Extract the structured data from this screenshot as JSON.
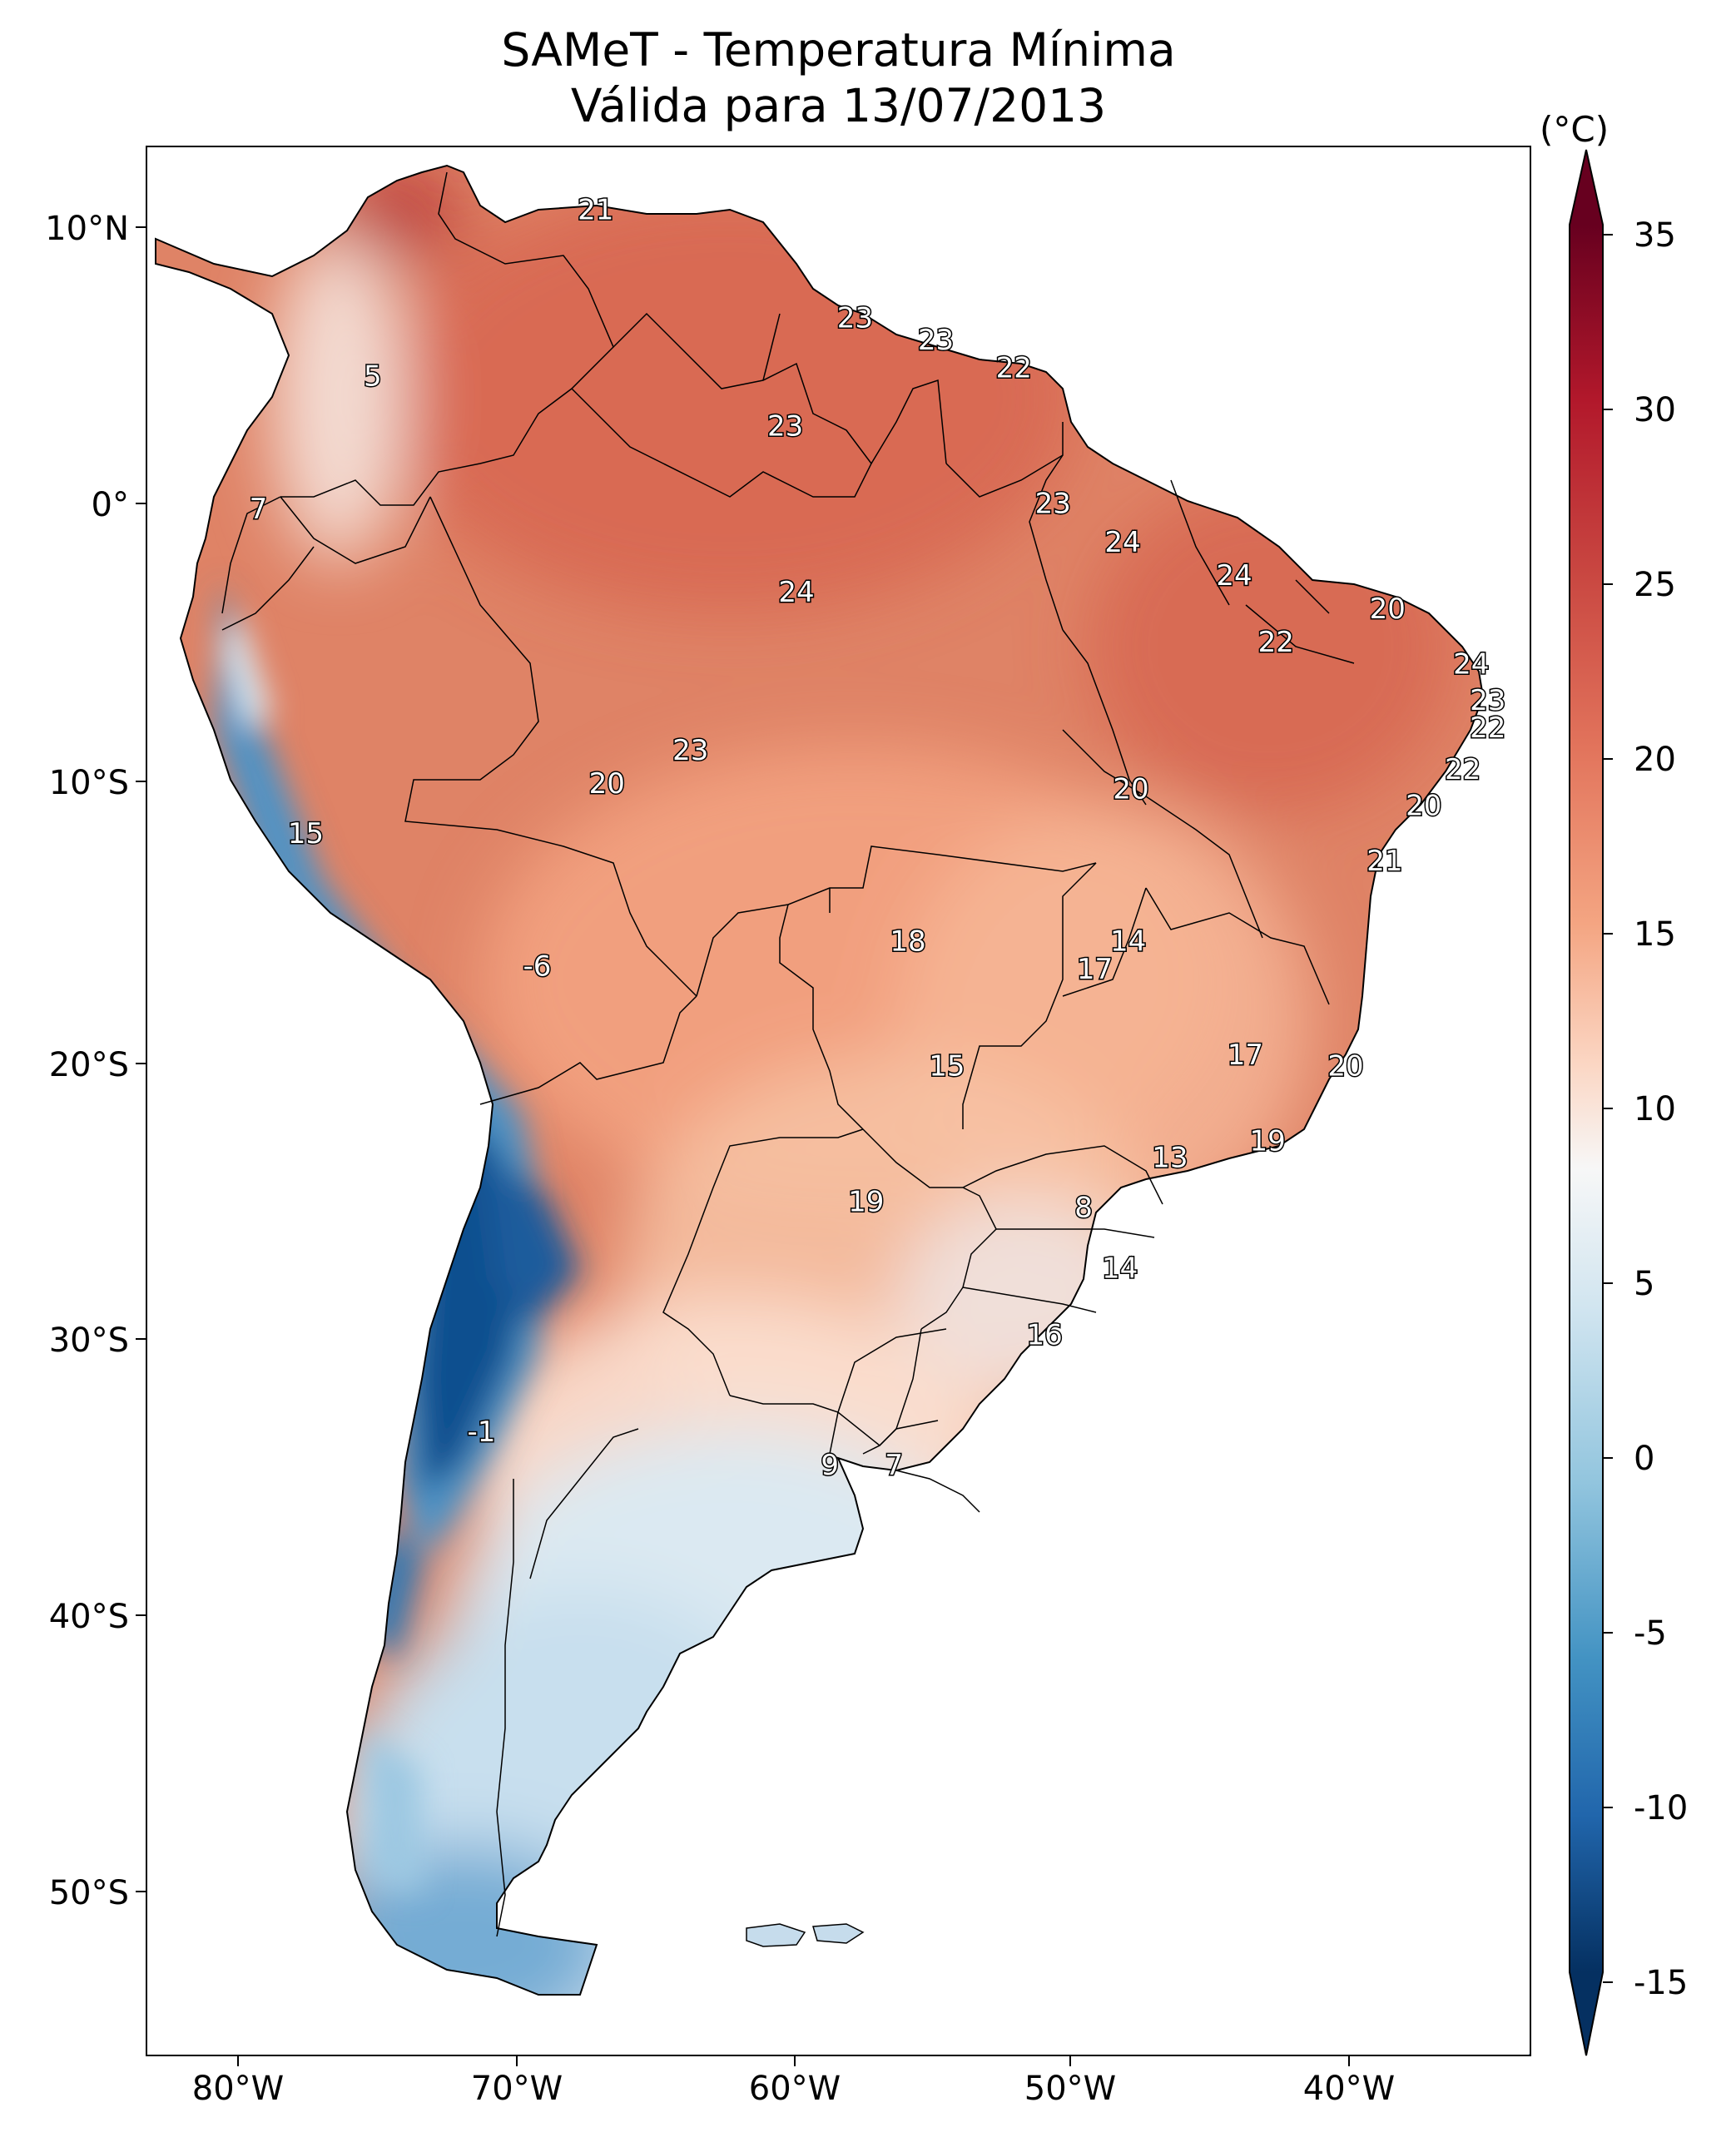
{
  "title": {
    "line1": "SAMeT - Temperatura Mínima",
    "line2": "Válida para 13/07/2013"
  },
  "colorbar": {
    "unit": "(°C)",
    "ticks": [
      "35",
      "30",
      "25",
      "20",
      "15",
      "10",
      "5",
      "0",
      "-5",
      "-10",
      "-15"
    ],
    "colors": [
      "#67001f",
      "#b2182b",
      "#d6604d",
      "#f4a582",
      "#fddbc7",
      "#f7f7f7",
      "#d1e5f0",
      "#92c5de",
      "#4393c3",
      "#2166ac",
      "#053061"
    ]
  },
  "axes": {
    "lat_labels": [
      "10°N",
      "0°",
      "10°S",
      "20°S",
      "30°S",
      "40°S",
      "50°S"
    ],
    "lon_labels": [
      "80°W",
      "70°W",
      "60°W",
      "50°W",
      "40°W"
    ]
  },
  "map_labels": [
    {
      "text": "21",
      "lon": -67.2,
      "lat": 10.6
    },
    {
      "text": "5",
      "lon": -75.2,
      "lat": 4.6
    },
    {
      "text": "23",
      "lon": -57.9,
      "lat": 6.7
    },
    {
      "text": "23",
      "lon": -55.0,
      "lat": 5.9
    },
    {
      "text": "22",
      "lon": -52.2,
      "lat": 4.9
    },
    {
      "text": "23",
      "lon": -60.4,
      "lat": 2.8
    },
    {
      "text": "7",
      "lon": -79.3,
      "lat": -0.2
    },
    {
      "text": "23",
      "lon": -50.8,
      "lat": 0.0
    },
    {
      "text": "24",
      "lon": -48.3,
      "lat": -1.4
    },
    {
      "text": "24",
      "lon": -44.3,
      "lat": -2.6
    },
    {
      "text": "20",
      "lon": -38.8,
      "lat": -3.8
    },
    {
      "text": "24",
      "lon": -60.0,
      "lat": -3.2
    },
    {
      "text": "22",
      "lon": -42.8,
      "lat": -5.0
    },
    {
      "text": "24",
      "lon": -35.8,
      "lat": -5.8
    },
    {
      "text": "23",
      "lon": -35.2,
      "lat": -7.1
    },
    {
      "text": "22",
      "lon": -35.2,
      "lat": -8.1
    },
    {
      "text": "23",
      "lon": -63.8,
      "lat": -8.9
    },
    {
      "text": "20",
      "lon": -66.8,
      "lat": -10.1
    },
    {
      "text": "22",
      "lon": -36.1,
      "lat": -9.6
    },
    {
      "text": "20",
      "lon": -48.0,
      "lat": -10.3
    },
    {
      "text": "20",
      "lon": -37.5,
      "lat": -10.9
    },
    {
      "text": "15",
      "lon": -77.6,
      "lat": -11.9
    },
    {
      "text": "21",
      "lon": -38.9,
      "lat": -12.9
    },
    {
      "text": "18",
      "lon": -56.0,
      "lat": -15.8
    },
    {
      "text": "14",
      "lon": -48.1,
      "lat": -15.8
    },
    {
      "text": "-6",
      "lon": -69.3,
      "lat": -16.7
    },
    {
      "text": "17",
      "lon": -49.3,
      "lat": -16.8
    },
    {
      "text": "15",
      "lon": -54.6,
      "lat": -20.3
    },
    {
      "text": "17",
      "lon": -43.9,
      "lat": -19.9
    },
    {
      "text": "20",
      "lon": -40.3,
      "lat": -20.3
    },
    {
      "text": "19",
      "lon": -43.1,
      "lat": -23.0
    },
    {
      "text": "13",
      "lon": -46.6,
      "lat": -23.6
    },
    {
      "text": "8",
      "lon": -49.7,
      "lat": -25.4
    },
    {
      "text": "19",
      "lon": -57.5,
      "lat": -25.2
    },
    {
      "text": "14",
      "lon": -48.4,
      "lat": -27.6
    },
    {
      "text": "16",
      "lon": -51.1,
      "lat": -30.0
    },
    {
      "text": "-1",
      "lon": -71.3,
      "lat": -33.5
    },
    {
      "text": "9",
      "lon": -58.8,
      "lat": -34.7
    },
    {
      "text": "7",
      "lon": -56.5,
      "lat": -34.7
    }
  ]
}
